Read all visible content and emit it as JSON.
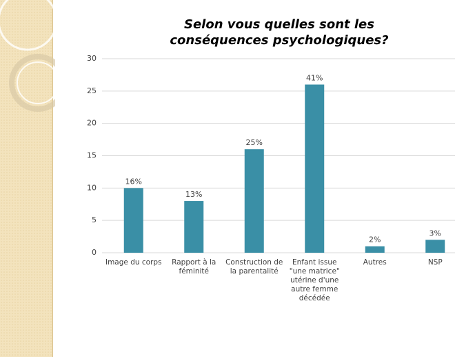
{
  "chart_data": {
    "type": "bar",
    "title": "Selon vous quelles sont les conséquences psychologiques?",
    "categories": [
      "Image du corps",
      "Rapport à la féminité",
      "Construction de la parentalité",
      "Enfant issue \"une matrice\" utérine d'une autre femme décédée",
      "Autres",
      "NSP"
    ],
    "values": [
      10,
      8,
      16,
      26,
      1,
      2
    ],
    "value_labels": [
      "16%",
      "13%",
      "25%",
      "41%",
      "2%",
      "3%"
    ],
    "color": "#3a8fa6",
    "ylim": [
      0,
      30
    ],
    "yticks": [
      0,
      5,
      10,
      15,
      20,
      25,
      30
    ],
    "grid": true
  }
}
